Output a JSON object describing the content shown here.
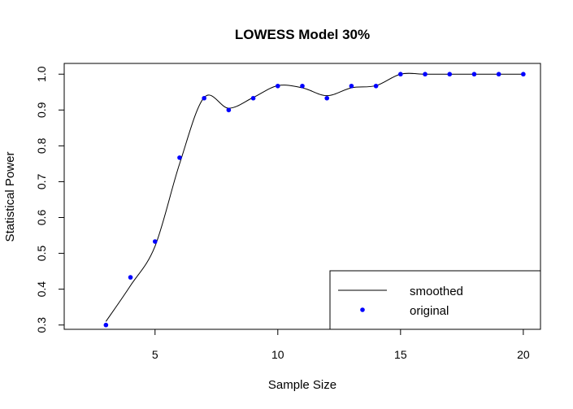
{
  "chart_data": {
    "type": "scatter",
    "title": "LOWESS Model 30%",
    "xlabel": "Sample Size",
    "ylabel": "Statistical Power",
    "xlim": [
      1.3,
      20.7
    ],
    "ylim": [
      0.288,
      1.03
    ],
    "x_ticks": [
      5,
      10,
      15,
      20
    ],
    "y_ticks": [
      0.3,
      0.4,
      0.5,
      0.6,
      0.7,
      0.8,
      0.9,
      1.0
    ],
    "x_tick_labels": [
      "5",
      "10",
      "15",
      "20"
    ],
    "y_tick_labels": [
      "0.3",
      "0.4",
      "0.5",
      "0.6",
      "0.7",
      "0.8",
      "0.9",
      "1.0"
    ],
    "grid": false,
    "legend_position": "bottom-right",
    "series": [
      {
        "name": "smoothed",
        "style": "line",
        "color": "#000000",
        "x": [
          3,
          4,
          5,
          6,
          7,
          8,
          9,
          10,
          11,
          12,
          13,
          14,
          15,
          16,
          17,
          18,
          19,
          20
        ],
        "y": [
          0.31,
          0.41,
          0.52,
          0.75,
          0.935,
          0.905,
          0.935,
          0.968,
          0.962,
          0.94,
          0.962,
          0.968,
          1.0,
          1.0,
          1.0,
          1.0,
          1.0,
          1.0
        ]
      },
      {
        "name": "original",
        "style": "points",
        "color": "#0000ff",
        "x": [
          3,
          4,
          5,
          6,
          7,
          8,
          9,
          10,
          11,
          12,
          13,
          14,
          15,
          16,
          17,
          18,
          19,
          20
        ],
        "y": [
          0.3,
          0.433,
          0.533,
          0.767,
          0.933,
          0.9,
          0.933,
          0.967,
          0.967,
          0.933,
          0.967,
          0.967,
          1.0,
          1.0,
          1.0,
          1.0,
          1.0,
          1.0
        ]
      }
    ],
    "legend": [
      {
        "label": "smoothed",
        "symbol": "line"
      },
      {
        "label": "original",
        "symbol": "point"
      }
    ]
  }
}
